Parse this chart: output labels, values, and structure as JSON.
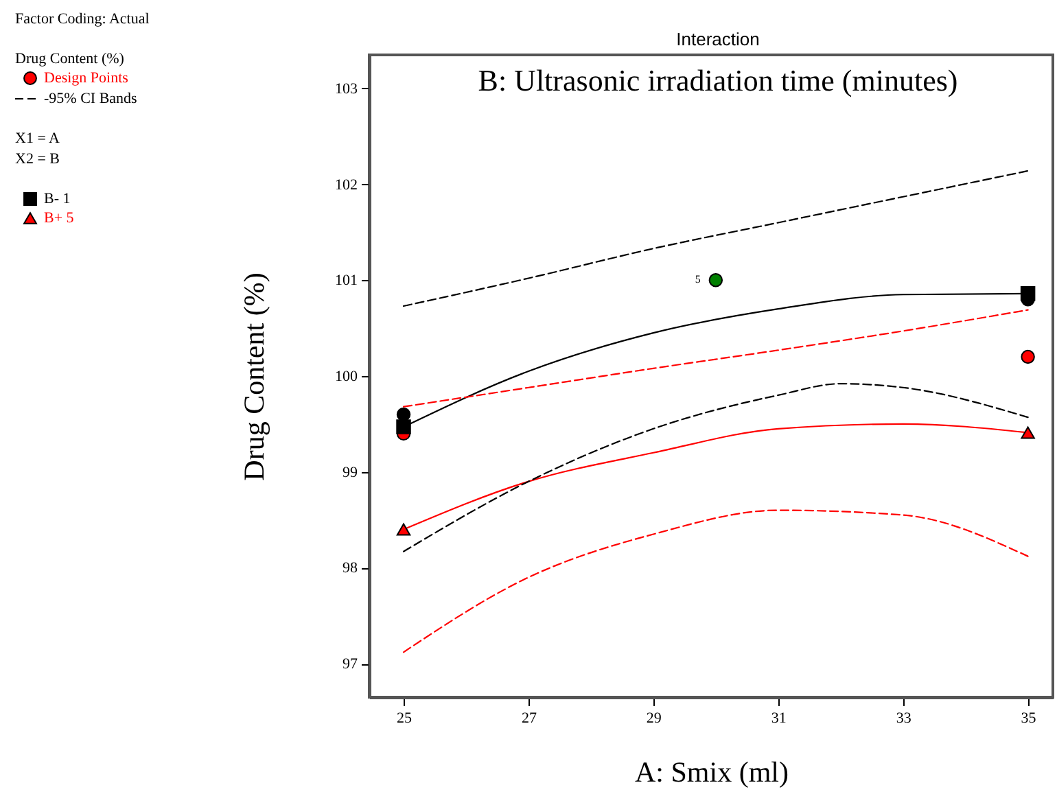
{
  "chart_data": {
    "type": "line",
    "title": "Interaction",
    "subtitle": "B: Ultrasonic irradiation time (minutes)",
    "xlabel": "A: Smix (ml)",
    "ylabel": "Drug Content (%)",
    "legend_title": "Drug Content (%)",
    "legend": "left",
    "annotations": [
      "Factor Coding: Actual",
      "X1 = A",
      "X2 = B",
      {
        "text": "5",
        "x": 30,
        "y": 101.0
      }
    ],
    "xlim": [
      24.45,
      35.4
    ],
    "xticks": [
      25,
      27,
      29,
      31,
      33,
      35
    ],
    "ylim": [
      96.65,
      103.35
    ],
    "yticks": [
      97,
      98,
      99,
      100,
      101,
      102,
      103
    ],
    "series": [
      {
        "name": "Design Points",
        "type": "scatter",
        "marker": "circle",
        "color": "#ff0000",
        "x": [
          25,
          35
        ],
        "values": [
          99.4,
          100.2
        ]
      },
      {
        "name": "-95% CI Bands",
        "line_style": "dashed",
        "color": "#000000",
        "x": [
          25,
          27,
          29,
          31,
          33,
          35
        ],
        "values": [
          100.73,
          101.02,
          101.33,
          101.6,
          101.87,
          102.14
        ]
      },
      {
        "name": "B- 1",
        "type": "scatter",
        "marker": "square",
        "color": "#000000",
        "x": [
          25,
          35
        ],
        "values": [
          99.47,
          100.86
        ]
      },
      {
        "name": "B+ 5",
        "type": "scatter",
        "marker": "triangle",
        "color": "#ff0000",
        "x": [
          25,
          35
        ],
        "values": [
          98.4,
          99.41
        ]
      },
      {
        "type": "scatter",
        "marker": "circle",
        "color": "#000000",
        "x": [
          25,
          35
        ],
        "values": [
          99.6,
          100.8
        ]
      },
      {
        "type": "scatter",
        "marker": "circle",
        "color": "#008000",
        "x": [
          30
        ],
        "values": [
          101.0
        ]
      },
      {
        "line_style": "solid",
        "color": "#000000",
        "x": [
          25,
          27,
          29,
          31,
          33,
          35
        ],
        "values": [
          99.47,
          100.05,
          100.45,
          100.7,
          100.85,
          100.86
        ]
      },
      {
        "line_style": "solid",
        "color": "#ff0000",
        "x": [
          25,
          27,
          29,
          31,
          33,
          35
        ],
        "values": [
          98.4,
          98.9,
          99.2,
          99.45,
          99.5,
          99.41
        ]
      },
      {
        "line_style": "dashed",
        "color": "#000000",
        "x": [
          25,
          27,
          29,
          31,
          32,
          33,
          35
        ],
        "values": [
          98.17,
          98.9,
          99.45,
          99.8,
          99.92,
          99.88,
          99.57
        ]
      },
      {
        "line_style": "dashed",
        "color": "#ff0000",
        "x": [
          25,
          27,
          29,
          31,
          33,
          35
        ],
        "values": [
          99.68,
          99.88,
          100.08,
          100.27,
          100.47,
          100.69
        ]
      },
      {
        "line_style": "dashed",
        "color": "#ff0000",
        "x": [
          25,
          27,
          29,
          31,
          33,
          35
        ],
        "values": [
          97.12,
          97.9,
          98.35,
          98.6,
          98.55,
          98.12
        ]
      }
    ]
  }
}
